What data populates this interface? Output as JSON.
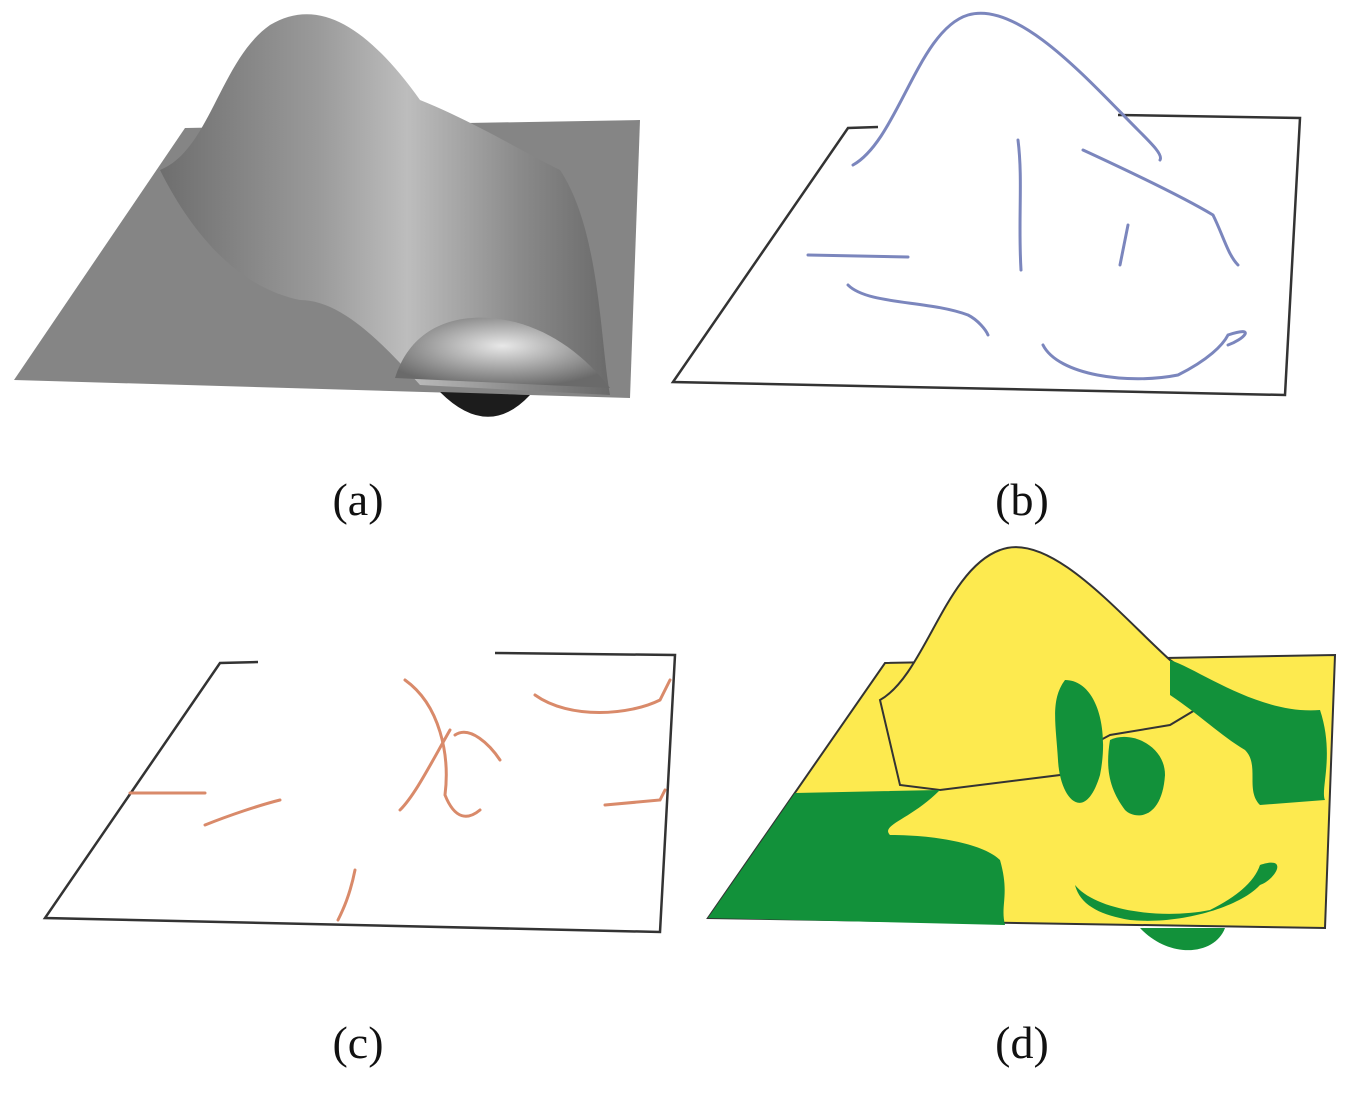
{
  "figure": {
    "panels": [
      {
        "id": "a",
        "label": "(a)",
        "content": "shaded-surface"
      },
      {
        "id": "b",
        "label": "(b)",
        "content": "ridge-lines",
        "line_color": "#7b86bd"
      },
      {
        "id": "c",
        "label": "(c)",
        "content": "valley-lines",
        "line_color": "#d98a6a"
      },
      {
        "id": "d",
        "label": "(d)",
        "content": "segmented-regions",
        "colors": {
          "convex": "#fdea4f",
          "concave": "#12913a"
        }
      }
    ]
  }
}
